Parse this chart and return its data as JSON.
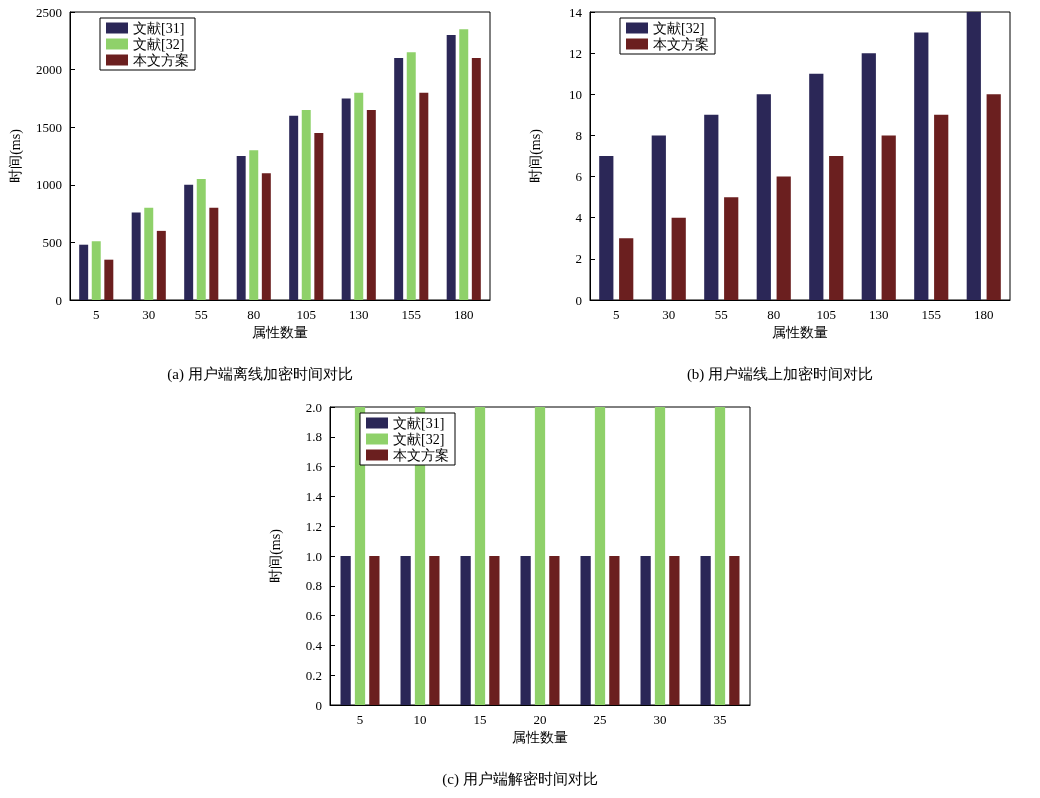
{
  "chart_data": [
    {
      "type": "bar",
      "title": "(a) 用户端离线加密时间对比",
      "xlabel": "属性数量",
      "ylabel": "时间(ms)",
      "categories": [
        "5",
        "30",
        "55",
        "80",
        "105",
        "130",
        "155",
        "180"
      ],
      "series": [
        {
          "name": "文献[31]",
          "color": "#2b2757",
          "values": [
            480,
            760,
            1000,
            1250,
            1600,
            1750,
            2100,
            2300
          ]
        },
        {
          "name": "文献[32]",
          "color": "#8fd16a",
          "values": [
            510,
            800,
            1050,
            1300,
            1650,
            1800,
            2150,
            2350
          ]
        },
        {
          "name": "本文方案",
          "color": "#6b1f1f",
          "values": [
            350,
            600,
            800,
            1100,
            1450,
            1650,
            1800,
            2100
          ]
        }
      ],
      "ylim": [
        0,
        2500
      ],
      "yticks": [
        0,
        500,
        1000,
        1500,
        2000,
        2500
      ],
      "legend": "top left",
      "grid": false
    },
    {
      "type": "bar",
      "title": "(b) 用户端线上加密时间对比",
      "xlabel": "属性数量",
      "ylabel": "时间(ms)",
      "categories": [
        "5",
        "30",
        "55",
        "80",
        "105",
        "130",
        "155",
        "180"
      ],
      "series": [
        {
          "name": "文献[32]",
          "color": "#2b2757",
          "values": [
            7,
            8,
            9,
            10,
            11,
            12,
            13,
            14
          ]
        },
        {
          "name": "本文方案",
          "color": "#6b1f1f",
          "values": [
            3,
            4,
            5,
            6,
            7,
            8,
            9,
            10
          ]
        }
      ],
      "ylim": [
        0,
        14
      ],
      "yticks": [
        0,
        2,
        4,
        6,
        8,
        10,
        12,
        14
      ],
      "legend": "top left",
      "grid": false
    },
    {
      "type": "bar",
      "title": "(c) 用户端解密时间对比",
      "xlabel": "属性数量",
      "ylabel": "时间(ms)",
      "categories": [
        "5",
        "10",
        "15",
        "20",
        "25",
        "30",
        "35"
      ],
      "series": [
        {
          "name": "文献[31]",
          "color": "#2b2757",
          "values": [
            1,
            1,
            1,
            1,
            1,
            1,
            1
          ]
        },
        {
          "name": "文献[32]",
          "color": "#8fd16a",
          "values": [
            2,
            2,
            2,
            2,
            2,
            2,
            2
          ]
        },
        {
          "name": "本文方案",
          "color": "#6b1f1f",
          "values": [
            1,
            1,
            1,
            1,
            1,
            1,
            1
          ]
        }
      ],
      "ylim": [
        0,
        2
      ],
      "yticks": [
        0,
        {
          "value": 0.2,
          "label": "0.2"
        },
        {
          "value": 0.4,
          "label": "0.4"
        },
        {
          "value": 0.6,
          "label": "0.6"
        },
        {
          "value": 0.8,
          "label": "0.8"
        },
        {
          "value": 1,
          "label": "1.0"
        },
        {
          "value": 1.2,
          "label": "1.2"
        },
        {
          "value": 1.4,
          "label": "1.4"
        },
        {
          "value": 1.6,
          "label": "1.6"
        },
        {
          "value": 1.8,
          "label": "1.8"
        },
        {
          "value": 2,
          "label": "2.0"
        }
      ],
      "legend": "top left",
      "grid": false
    }
  ]
}
